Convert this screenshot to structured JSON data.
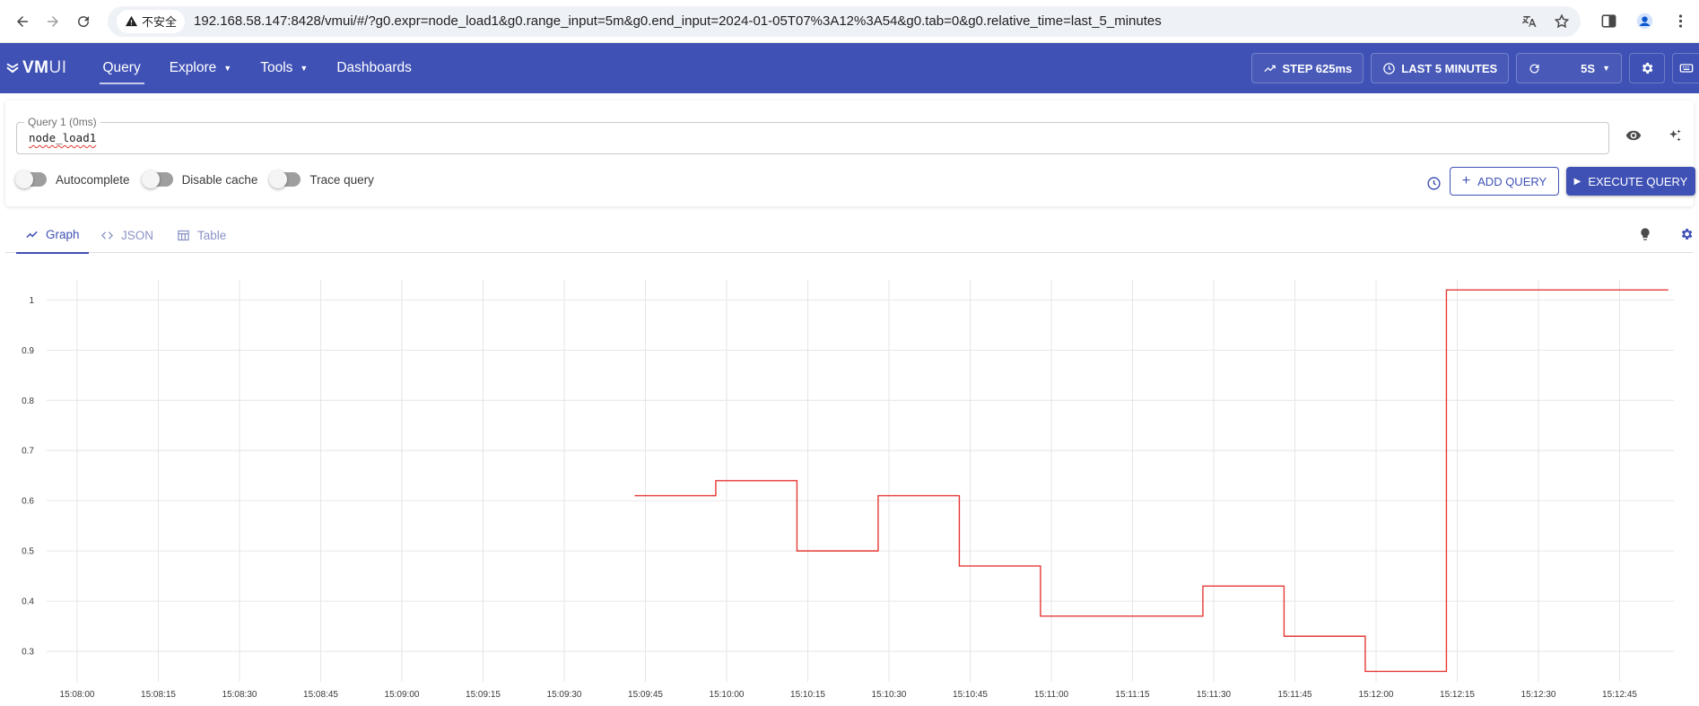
{
  "browser": {
    "security_label": "不安全",
    "url": "192.168.58.147:8428/vmui/#/?g0.expr=node_load1&g0.range_input=5m&g0.end_input=2024-01-05T07%3A12%3A54&g0.tab=0&g0.relative_time=last_5_minutes"
  },
  "header": {
    "logo_main": "VM",
    "logo_sub": "UI",
    "nav": [
      {
        "label": "Query"
      },
      {
        "label": "Explore"
      },
      {
        "label": "Tools"
      },
      {
        "label": "Dashboards"
      }
    ],
    "step_label": "STEP 625ms",
    "time_label": "LAST 5 MINUTES",
    "refresh_label": "5S"
  },
  "query": {
    "label": "Query 1 (0ms)",
    "value": "node_load1",
    "toggles": [
      {
        "label": "Autocomplete"
      },
      {
        "label": "Disable cache"
      },
      {
        "label": "Trace query"
      }
    ],
    "add_label": "ADD QUERY",
    "execute_label": "EXECUTE QUERY"
  },
  "tabs": [
    {
      "label": "Graph"
    },
    {
      "label": "JSON"
    },
    {
      "label": "Table"
    }
  ],
  "chart_data": {
    "type": "line",
    "line_style": "step",
    "series_color": "#e53935",
    "ylim": [
      0.25,
      1.04
    ],
    "y_ticks": [
      "1",
      "0.9",
      "0.8",
      "0.7",
      "0.6",
      "0.5",
      "0.4",
      "0.3"
    ],
    "x_ticks": [
      "15:08:00",
      "15:08:15",
      "15:08:30",
      "15:08:45",
      "15:09:00",
      "15:09:15",
      "15:09:30",
      "15:09:45",
      "15:10:00",
      "15:10:15",
      "15:10:30",
      "15:10:45",
      "15:11:00",
      "15:11:15",
      "15:11:30",
      "15:11:45",
      "15:12:00",
      "15:12:15",
      "15:12:30",
      "15:12:45"
    ],
    "x_date_label": "2024-01-05",
    "x_start": "15:08:00",
    "x_end": "15:12:54",
    "series": [
      {
        "x": [
          "15:09:43",
          "15:09:58",
          "15:10:13",
          "15:10:28",
          "15:10:43",
          "15:10:58",
          "15:11:28",
          "15:11:43",
          "15:11:58",
          "15:12:13",
          "15:12:54"
        ],
        "values": [
          0.61,
          0.64,
          0.5,
          0.61,
          0.47,
          0.37,
          0.43,
          0.33,
          0.26,
          1.02,
          1.02
        ]
      }
    ]
  }
}
